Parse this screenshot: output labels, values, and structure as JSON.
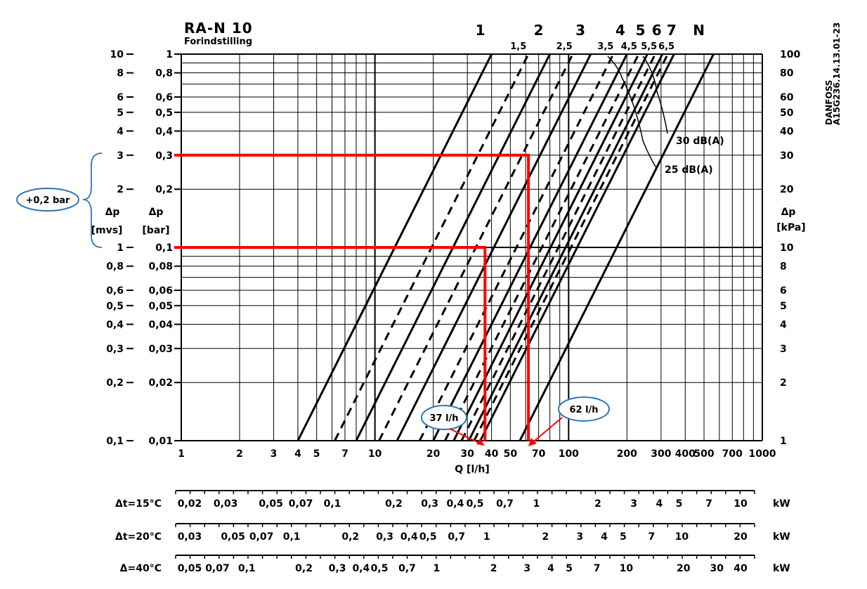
{
  "chart_data": {
    "type": "line",
    "x_scale": "log",
    "y_scale": "log",
    "title": "RA-N 10",
    "subtitle": "Forindstilling",
    "doc_code": "DANFOSS\nA15G236.14.13.01-23",
    "xlabel": "Q  [l/h]",
    "xlim": [
      1,
      1000
    ],
    "x_ticks": [
      "1",
      "2",
      "3",
      "4",
      "5",
      "7",
      "10",
      "20",
      "30",
      "40",
      "50",
      "70",
      "100",
      "200",
      "300",
      "400",
      "500",
      "700",
      "1000"
    ],
    "x_tick_values": [
      1,
      2,
      3,
      4,
      5,
      7,
      10,
      20,
      30,
      40,
      50,
      70,
      100,
      200,
      300,
      400,
      500,
      700,
      1000
    ],
    "ylim_bar": [
      0.01,
      1
    ],
    "y_axis_mvs": {
      "label_line1": "Δp",
      "label_line2": "[mvs]",
      "ticks": [
        "10",
        "8",
        "6",
        "5",
        "4",
        "3",
        "2",
        "1",
        "0,8",
        "0,6",
        "0,5",
        "0,4",
        "0,3",
        "0,2",
        "0,1"
      ]
    },
    "y_axis_bar": {
      "label_line1": "Δp",
      "label_line2": "[bar]",
      "ticks": [
        "1",
        "0,8",
        "0,6",
        "0,5",
        "0,4",
        "0,3",
        "0,2",
        "0,1",
        "0,08",
        "0,06",
        "0,05",
        "0,04",
        "0,03",
        "0,02",
        "0,01"
      ]
    },
    "y_axis_kpa": {
      "label_line1": "Δp",
      "label_line2": "[kPa]",
      "ticks": [
        "100",
        "80",
        "60",
        "50",
        "40",
        "30",
        "20",
        "10",
        "8",
        "6",
        "5",
        "4",
        "3",
        "2",
        "1"
      ]
    },
    "y_tick_values_bar": [
      1,
      0.8,
      0.6,
      0.5,
      0.4,
      0.3,
      0.2,
      0.1,
      0.08,
      0.06,
      0.05,
      0.04,
      0.03,
      0.02,
      0.01
    ],
    "series": [
      {
        "name": "1",
        "style": "solid",
        "x": [
          4,
          40
        ]
      },
      {
        "name": "1,5",
        "style": "dashed",
        "x": [
          6.2,
          62
        ]
      },
      {
        "name": "2",
        "style": "solid",
        "x": [
          8,
          80
        ]
      },
      {
        "name": "2,5",
        "style": "dashed",
        "x": [
          10.5,
          105
        ]
      },
      {
        "name": "3",
        "style": "solid",
        "x": [
          13,
          130
        ]
      },
      {
        "name": "3,5",
        "style": "dashed",
        "x": [
          17,
          170
        ]
      },
      {
        "name": "4",
        "style": "solid",
        "x": [
          20,
          200
        ]
      },
      {
        "name": "4,5",
        "style": "dashed",
        "x": [
          23,
          230
        ]
      },
      {
        "name": "5",
        "style": "solid",
        "x": [
          25.5,
          255
        ]
      },
      {
        "name": "5,5",
        "style": "dashed",
        "x": [
          28,
          280
        ]
      },
      {
        "name": "6",
        "style": "solid",
        "x": [
          30.5,
          305
        ]
      },
      {
        "name": "6,5",
        "style": "dashed",
        "x": [
          32.5,
          325
        ]
      },
      {
        "name": "7",
        "style": "solid",
        "x": [
          35,
          350
        ]
      },
      {
        "name": "N",
        "style": "solid",
        "x": [
          56,
          560
        ]
      }
    ],
    "series_y_bar": [
      0.01,
      1
    ],
    "series_labels_top": [
      {
        "text": "1",
        "x": 35,
        "size": "big"
      },
      {
        "text": "1,5",
        "x": 55,
        "size": "small"
      },
      {
        "text": "2",
        "x": 70,
        "size": "big"
      },
      {
        "text": "2,5",
        "x": 95,
        "size": "small"
      },
      {
        "text": "3",
        "x": 115,
        "size": "big"
      },
      {
        "text": "3,5",
        "x": 155,
        "size": "small"
      },
      {
        "text": "4",
        "x": 185,
        "size": "big"
      },
      {
        "text": "4,5",
        "x": 205,
        "size": "small"
      },
      {
        "text": "5",
        "x": 235,
        "size": "big"
      },
      {
        "text": "5,5",
        "x": 260,
        "size": "small"
      },
      {
        "text": "6",
        "x": 285,
        "size": "big"
      },
      {
        "text": "6,5",
        "x": 320,
        "size": "small"
      },
      {
        "text": "7",
        "x": 340,
        "size": "big"
      },
      {
        "text": "N",
        "x": 470,
        "size": "big"
      }
    ],
    "noise_labels": [
      "30  dB(A)",
      "25  dB(A)"
    ],
    "red_lines": [
      {
        "dp_bar": 0.1,
        "q": 37
      },
      {
        "dp_bar": 0.3,
        "q": 62
      }
    ],
    "callouts": {
      "bracket_label": "+0,2 bar",
      "q1_label": "37 l/h",
      "q2_label": "62 l/h"
    },
    "accent_red": "#ff0000",
    "accent_blue": "#2e75b6",
    "power_scales": [
      {
        "label": "Δt=15°C",
        "unit": "kW",
        "ticks": [
          "0,02",
          "0,03",
          "0,05",
          "0,07",
          "0,1",
          "0,2",
          "0,3",
          "0,4",
          "0,5",
          "0,7",
          "1",
          "2",
          "3",
          "4",
          "5",
          "7",
          "10"
        ]
      },
      {
        "label": "Δt=20°C",
        "unit": "kW",
        "ticks": [
          "0,03",
          "0,05",
          "0,07",
          "0,1",
          "0,2",
          "0,3",
          "0,4",
          "0,5",
          "0,7",
          "1",
          "2",
          "3",
          "4",
          "5",
          "7",
          "10",
          "20"
        ]
      },
      {
        "label": "Δ=40°C",
        "unit": "kW",
        "ticks": [
          "0,05",
          "0,07",
          "0,1",
          "0,2",
          "0,3",
          "0,4",
          "0,5",
          "0,7",
          "1",
          "2",
          "3",
          "4",
          "5",
          "7",
          "10",
          "20",
          "30",
          "40"
        ]
      }
    ]
  }
}
